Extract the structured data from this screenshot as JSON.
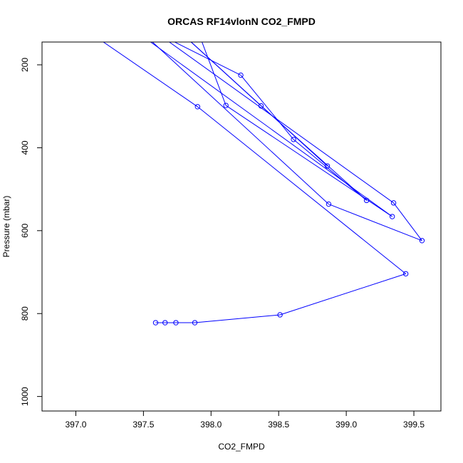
{
  "chart_data": {
    "type": "line",
    "title": "ORCAS RF14vlonN CO2_FMPD",
    "xlabel": "CO2_FMPD",
    "ylabel": "Pressure (mbar)",
    "xlim": [
      396.75,
      399.7
    ],
    "ylim": [
      1035,
      145
    ],
    "y_reversed": true,
    "grid": false,
    "x_ticks": [
      397.0,
      397.5,
      398.0,
      398.5,
      399.0,
      399.5
    ],
    "x_tick_labels": [
      "397.0",
      "397.5",
      "398.0",
      "398.5",
      "399.0",
      "399.5"
    ],
    "y_ticks": [
      200,
      400,
      600,
      800,
      1000
    ],
    "y_tick_labels": [
      "200",
      "400",
      "600",
      "800",
      "1000"
    ],
    "series": [
      {
        "color": "#0000ff",
        "points": [
          {
            "x": 397.59,
            "y": 822
          },
          {
            "x": 397.66,
            "y": 822
          },
          {
            "x": 397.74,
            "y": 822
          },
          {
            "x": 397.88,
            "y": 822
          },
          {
            "x": 398.51,
            "y": 803
          },
          {
            "x": 399.44,
            "y": 704
          },
          {
            "x": 397.9,
            "y": 301
          },
          {
            "x": 396.78,
            "y": 50
          },
          {
            "x": 397.35,
            "y": 80
          },
          {
            "x": 398.87,
            "y": 536
          },
          {
            "x": 399.56,
            "y": 624
          },
          {
            "x": 399.35,
            "y": 533
          },
          {
            "x": 397.2,
            "y": 30
          },
          {
            "x": 397.8,
            "y": 30
          },
          {
            "x": 398.11,
            "y": 298
          },
          {
            "x": 399.34,
            "y": 566
          },
          {
            "x": 397.15,
            "y": 50
          },
          {
            "x": 398.22,
            "y": 225
          },
          {
            "x": 398.61,
            "y": 380
          },
          {
            "x": 399.15,
            "y": 527
          },
          {
            "x": 398.37,
            "y": 299
          },
          {
            "x": 397.6,
            "y": 70
          },
          {
            "x": 398.86,
            "y": 444
          }
        ],
        "markers": [
          {
            "x": 397.59,
            "y": 822
          },
          {
            "x": 397.66,
            "y": 822
          },
          {
            "x": 397.74,
            "y": 822
          },
          {
            "x": 397.88,
            "y": 822
          },
          {
            "x": 398.51,
            "y": 803
          },
          {
            "x": 399.44,
            "y": 704
          },
          {
            "x": 397.9,
            "y": 301
          },
          {
            "x": 398.87,
            "y": 536
          },
          {
            "x": 399.56,
            "y": 624
          },
          {
            "x": 399.35,
            "y": 533
          },
          {
            "x": 398.11,
            "y": 298
          },
          {
            "x": 399.34,
            "y": 566
          },
          {
            "x": 398.22,
            "y": 225
          },
          {
            "x": 398.61,
            "y": 380
          },
          {
            "x": 399.15,
            "y": 527
          },
          {
            "x": 398.37,
            "y": 299
          },
          {
            "x": 398.86,
            "y": 444
          }
        ]
      }
    ]
  }
}
